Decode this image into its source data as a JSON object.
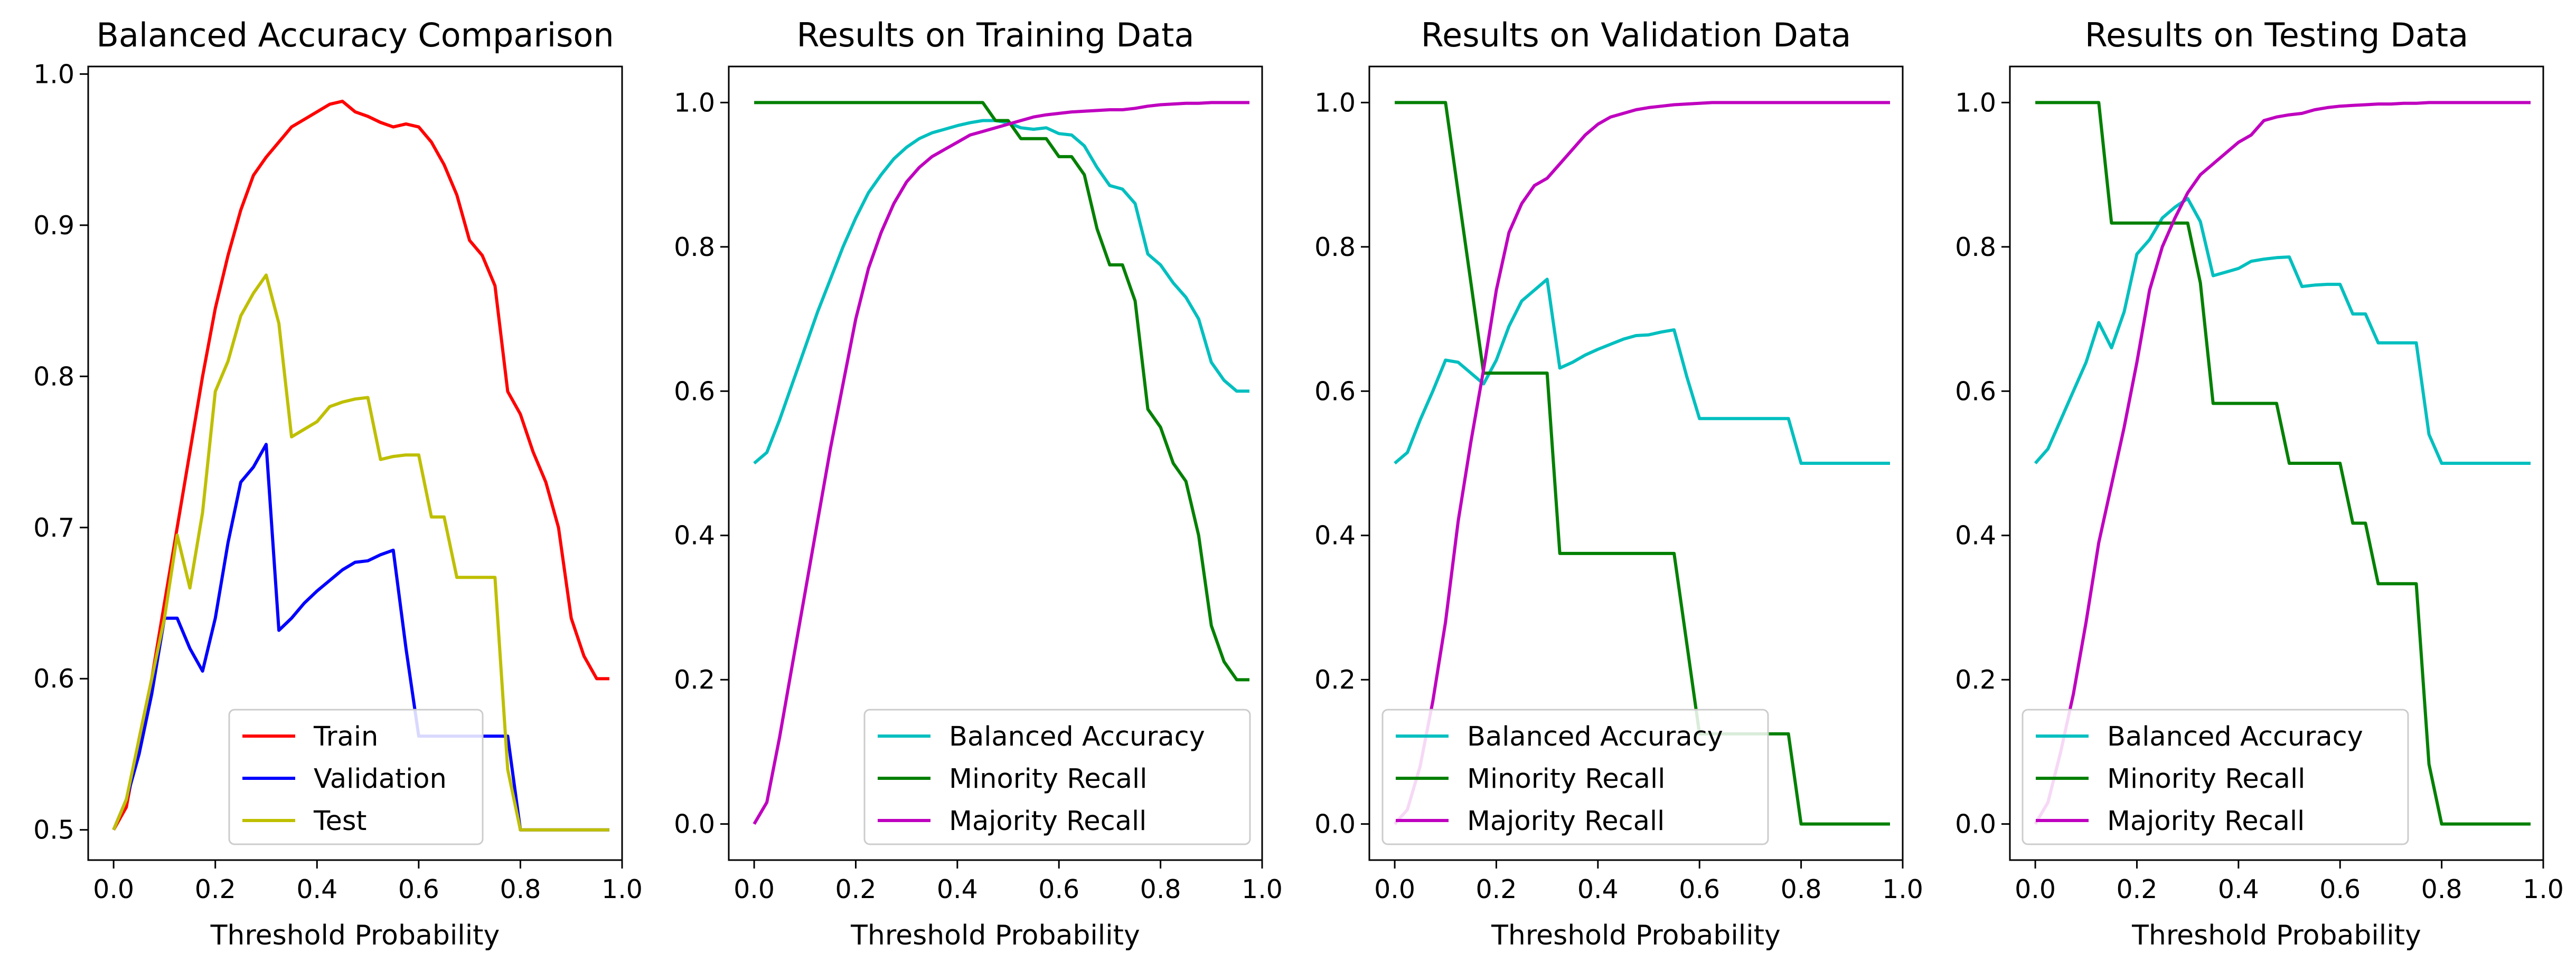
{
  "chart_data": [
    {
      "type": "line",
      "title": "Balanced Accuracy Comparison",
      "xlabel": "Threshold Probability",
      "ylabel": "",
      "xlim": [
        -0.05,
        1.0
      ],
      "ylim": [
        0.48,
        1.005
      ],
      "xticks": [
        "0.0",
        "0.2",
        "0.4",
        "0.6",
        "0.8",
        "1.0"
      ],
      "yticks": [
        "0.5",
        "0.6",
        "0.7",
        "0.8",
        "0.9",
        "1.0"
      ],
      "legend_position": "lower-center",
      "x": [
        0.0,
        0.025,
        0.05,
        0.075,
        0.1,
        0.125,
        0.15,
        0.175,
        0.2,
        0.225,
        0.25,
        0.275,
        0.3,
        0.325,
        0.35,
        0.375,
        0.4,
        0.425,
        0.45,
        0.475,
        0.5,
        0.525,
        0.55,
        0.575,
        0.6,
        0.625,
        0.65,
        0.675,
        0.7,
        0.725,
        0.75,
        0.775,
        0.8,
        0.825,
        0.85,
        0.875,
        0.9,
        0.925,
        0.95,
        0.975
      ],
      "series": [
        {
          "name": "Train",
          "color": "#ff0000",
          "values": [
            0.5,
            0.515,
            0.56,
            0.6,
            0.65,
            0.7,
            0.75,
            0.8,
            0.845,
            0.88,
            0.91,
            0.933,
            0.945,
            0.955,
            0.965,
            0.97,
            0.975,
            0.98,
            0.982,
            0.975,
            0.972,
            0.968,
            0.965,
            0.967,
            0.965,
            0.955,
            0.94,
            0.92,
            0.89,
            0.88,
            0.86,
            0.79,
            0.775,
            0.75,
            0.73,
            0.7,
            0.64,
            0.615,
            0.6,
            0.6
          ]
        },
        {
          "name": "Validation",
          "color": "#0000ff",
          "values": [
            0.5,
            0.52,
            0.55,
            0.59,
            0.64,
            0.64,
            0.62,
            0.605,
            0.64,
            0.69,
            0.73,
            0.74,
            0.755,
            0.632,
            0.64,
            0.65,
            0.658,
            0.665,
            0.672,
            0.677,
            0.678,
            0.682,
            0.685,
            0.62,
            0.562,
            0.562,
            0.562,
            0.562,
            0.562,
            0.562,
            0.562,
            0.562,
            0.5,
            0.5,
            0.5,
            0.5,
            0.5,
            0.5,
            0.5,
            0.5
          ]
        },
        {
          "name": "Test",
          "color": "#bfbf00",
          "values": [
            0.5,
            0.52,
            0.56,
            0.6,
            0.64,
            0.695,
            0.66,
            0.71,
            0.79,
            0.81,
            0.84,
            0.855,
            0.867,
            0.835,
            0.76,
            0.765,
            0.77,
            0.78,
            0.783,
            0.785,
            0.786,
            0.745,
            0.747,
            0.748,
            0.748,
            0.707,
            0.707,
            0.667,
            0.667,
            0.667,
            0.667,
            0.54,
            0.5,
            0.5,
            0.5,
            0.5,
            0.5,
            0.5,
            0.5,
            0.5
          ]
        }
      ]
    },
    {
      "type": "line",
      "title": "Results on Training Data",
      "xlabel": "Threshold Probability",
      "ylabel": "",
      "xlim": [
        -0.05,
        1.0
      ],
      "ylim": [
        -0.05,
        1.05
      ],
      "xticks": [
        "0.0",
        "0.2",
        "0.4",
        "0.6",
        "0.8",
        "1.0"
      ],
      "yticks": [
        "0.0",
        "0.2",
        "0.4",
        "0.6",
        "0.8",
        "1.0"
      ],
      "legend_position": "lower-right",
      "x": [
        0.0,
        0.025,
        0.05,
        0.075,
        0.1,
        0.125,
        0.15,
        0.175,
        0.2,
        0.225,
        0.25,
        0.275,
        0.3,
        0.325,
        0.35,
        0.375,
        0.4,
        0.425,
        0.45,
        0.475,
        0.5,
        0.525,
        0.55,
        0.575,
        0.6,
        0.625,
        0.65,
        0.675,
        0.7,
        0.725,
        0.75,
        0.775,
        0.8,
        0.825,
        0.85,
        0.875,
        0.9,
        0.925,
        0.95,
        0.975
      ],
      "series": [
        {
          "name": "Balanced Accuracy",
          "color": "#00bfbf",
          "values": [
            0.5,
            0.515,
            0.56,
            0.61,
            0.66,
            0.71,
            0.755,
            0.8,
            0.84,
            0.875,
            0.9,
            0.922,
            0.938,
            0.95,
            0.958,
            0.963,
            0.968,
            0.972,
            0.975,
            0.975,
            0.972,
            0.965,
            0.963,
            0.965,
            0.957,
            0.955,
            0.94,
            0.91,
            0.885,
            0.88,
            0.86,
            0.79,
            0.775,
            0.75,
            0.73,
            0.7,
            0.64,
            0.615,
            0.6,
            0.6
          ]
        },
        {
          "name": "Minority Recall",
          "color": "#008000",
          "values": [
            1.0,
            1.0,
            1.0,
            1.0,
            1.0,
            1.0,
            1.0,
            1.0,
            1.0,
            1.0,
            1.0,
            1.0,
            1.0,
            1.0,
            1.0,
            1.0,
            1.0,
            1.0,
            1.0,
            0.975,
            0.975,
            0.95,
            0.95,
            0.95,
            0.925,
            0.925,
            0.9,
            0.825,
            0.775,
            0.775,
            0.725,
            0.575,
            0.55,
            0.5,
            0.475,
            0.4,
            0.275,
            0.225,
            0.2,
            0.2
          ]
        },
        {
          "name": "Majority Recall",
          "color": "#bf00bf",
          "values": [
            0.0,
            0.03,
            0.12,
            0.22,
            0.32,
            0.42,
            0.52,
            0.61,
            0.7,
            0.77,
            0.82,
            0.86,
            0.89,
            0.91,
            0.925,
            0.935,
            0.945,
            0.955,
            0.96,
            0.965,
            0.97,
            0.975,
            0.98,
            0.983,
            0.985,
            0.987,
            0.988,
            0.989,
            0.99,
            0.99,
            0.992,
            0.995,
            0.997,
            0.998,
            0.999,
            0.999,
            1.0,
            1.0,
            1.0,
            1.0
          ]
        }
      ]
    },
    {
      "type": "line",
      "title": "Results on Validation Data",
      "xlabel": "Threshold Probability",
      "ylabel": "",
      "xlim": [
        -0.05,
        1.0
      ],
      "ylim": [
        -0.05,
        1.05
      ],
      "xticks": [
        "0.0",
        "0.2",
        "0.4",
        "0.6",
        "0.8",
        "1.0"
      ],
      "yticks": [
        "0.0",
        "0.2",
        "0.4",
        "0.6",
        "0.8",
        "1.0"
      ],
      "legend_position": "lower-center",
      "x": [
        0.0,
        0.025,
        0.05,
        0.075,
        0.1,
        0.125,
        0.15,
        0.175,
        0.2,
        0.225,
        0.25,
        0.275,
        0.3,
        0.325,
        0.35,
        0.375,
        0.4,
        0.425,
        0.45,
        0.475,
        0.5,
        0.525,
        0.55,
        0.575,
        0.6,
        0.625,
        0.65,
        0.675,
        0.7,
        0.725,
        0.75,
        0.775,
        0.8,
        0.825,
        0.85,
        0.875,
        0.9,
        0.925,
        0.95,
        0.975
      ],
      "series": [
        {
          "name": "Balanced Accuracy",
          "color": "#00bfbf",
          "values": [
            0.5,
            0.515,
            0.56,
            0.6,
            0.643,
            0.64,
            0.625,
            0.61,
            0.643,
            0.69,
            0.725,
            0.74,
            0.755,
            0.632,
            0.64,
            0.65,
            0.658,
            0.665,
            0.672,
            0.677,
            0.678,
            0.682,
            0.685,
            0.62,
            0.562,
            0.562,
            0.562,
            0.562,
            0.562,
            0.562,
            0.562,
            0.562,
            0.5,
            0.5,
            0.5,
            0.5,
            0.5,
            0.5,
            0.5,
            0.5
          ]
        },
        {
          "name": "Minority Recall",
          "color": "#008000",
          "values": [
            1.0,
            1.0,
            1.0,
            1.0,
            1.0,
            0.875,
            0.75,
            0.625,
            0.625,
            0.625,
            0.625,
            0.625,
            0.625,
            0.375,
            0.375,
            0.375,
            0.375,
            0.375,
            0.375,
            0.375,
            0.375,
            0.375,
            0.375,
            0.25,
            0.125,
            0.125,
            0.125,
            0.125,
            0.125,
            0.125,
            0.125,
            0.125,
            0.0,
            0.0,
            0.0,
            0.0,
            0.0,
            0.0,
            0.0,
            0.0
          ]
        },
        {
          "name": "Majority Recall",
          "color": "#bf00bf",
          "values": [
            0.0,
            0.02,
            0.08,
            0.17,
            0.28,
            0.42,
            0.53,
            0.63,
            0.74,
            0.82,
            0.86,
            0.885,
            0.895,
            0.915,
            0.935,
            0.955,
            0.97,
            0.98,
            0.985,
            0.99,
            0.993,
            0.995,
            0.997,
            0.998,
            0.999,
            1.0,
            1.0,
            1.0,
            1.0,
            1.0,
            1.0,
            1.0,
            1.0,
            1.0,
            1.0,
            1.0,
            1.0,
            1.0,
            1.0,
            1.0
          ]
        }
      ]
    },
    {
      "type": "line",
      "title": "Results on Testing Data",
      "xlabel": "Threshold Probability",
      "ylabel": "",
      "xlim": [
        -0.05,
        1.0
      ],
      "ylim": [
        -0.05,
        1.05
      ],
      "xticks": [
        "0.0",
        "0.2",
        "0.4",
        "0.6",
        "0.8",
        "1.0"
      ],
      "yticks": [
        "0.0",
        "0.2",
        "0.4",
        "0.6",
        "0.8",
        "1.0"
      ],
      "legend_position": "lower-center",
      "x": [
        0.0,
        0.025,
        0.05,
        0.075,
        0.1,
        0.125,
        0.15,
        0.175,
        0.2,
        0.225,
        0.25,
        0.275,
        0.3,
        0.325,
        0.35,
        0.375,
        0.4,
        0.425,
        0.45,
        0.475,
        0.5,
        0.525,
        0.55,
        0.575,
        0.6,
        0.625,
        0.65,
        0.675,
        0.7,
        0.725,
        0.75,
        0.775,
        0.8,
        0.825,
        0.85,
        0.875,
        0.9,
        0.925,
        0.95,
        0.975
      ],
      "series": [
        {
          "name": "Balanced Accuracy",
          "color": "#00bfbf",
          "values": [
            0.5,
            0.52,
            0.56,
            0.6,
            0.64,
            0.695,
            0.66,
            0.71,
            0.79,
            0.81,
            0.84,
            0.855,
            0.867,
            0.835,
            0.76,
            0.765,
            0.77,
            0.78,
            0.783,
            0.785,
            0.786,
            0.745,
            0.747,
            0.748,
            0.748,
            0.707,
            0.707,
            0.667,
            0.667,
            0.667,
            0.667,
            0.54,
            0.5,
            0.5,
            0.5,
            0.5,
            0.5,
            0.5,
            0.5,
            0.5
          ]
        },
        {
          "name": "Minority Recall",
          "color": "#008000",
          "values": [
            1.0,
            1.0,
            1.0,
            1.0,
            1.0,
            1.0,
            0.833,
            0.833,
            0.833,
            0.833,
            0.833,
            0.833,
            0.833,
            0.75,
            0.583,
            0.583,
            0.583,
            0.583,
            0.583,
            0.583,
            0.5,
            0.5,
            0.5,
            0.5,
            0.5,
            0.417,
            0.417,
            0.333,
            0.333,
            0.333,
            0.333,
            0.083,
            0.0,
            0.0,
            0.0,
            0.0,
            0.0,
            0.0,
            0.0,
            0.0
          ]
        },
        {
          "name": "Majority Recall",
          "color": "#bf00bf",
          "values": [
            0.0,
            0.03,
            0.1,
            0.18,
            0.28,
            0.39,
            0.47,
            0.55,
            0.64,
            0.74,
            0.8,
            0.84,
            0.875,
            0.9,
            0.915,
            0.93,
            0.945,
            0.955,
            0.975,
            0.98,
            0.983,
            0.985,
            0.99,
            0.993,
            0.995,
            0.996,
            0.997,
            0.998,
            0.998,
            0.999,
            0.999,
            1.0,
            1.0,
            1.0,
            1.0,
            1.0,
            1.0,
            1.0,
            1.0,
            1.0
          ]
        }
      ]
    }
  ]
}
